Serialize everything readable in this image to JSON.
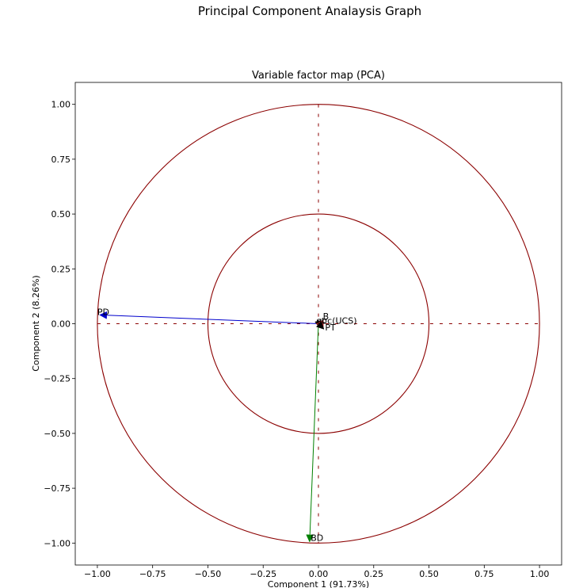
{
  "suptitle": "Principal Component Analaysis Graph",
  "chart_data": {
    "type": "scatter",
    "title": "Variable factor map (PCA)",
    "xlabel": "Component 1 (91.73%)",
    "ylabel": "Component 2 (8.26%)",
    "xlim": [
      -1.1,
      1.1
    ],
    "ylim": [
      -1.1,
      1.1
    ],
    "xticks": [
      -1.0,
      -0.75,
      -0.5,
      -0.25,
      0.0,
      0.25,
      0.5,
      0.75,
      1.0
    ],
    "xtick_labels": [
      "−1.00",
      "−0.75",
      "−0.50",
      "−0.25",
      "0.00",
      "0.25",
      "0.50",
      "0.75",
      "1.00"
    ],
    "yticks": [
      1.0,
      0.75,
      0.5,
      0.25,
      0.0,
      -0.25,
      -0.5,
      -0.75,
      -1.0
    ],
    "ytick_labels": [
      "1.00",
      "0.75",
      "0.50",
      "0.25",
      "0.00",
      "−0.25",
      "−0.50",
      "−0.75",
      "−1.00"
    ],
    "circles": [
      {
        "radius": 1.0,
        "color": "#8b0000"
      },
      {
        "radius": 0.5,
        "color": "#8b0000"
      }
    ],
    "reference_line_color": "#8b0000",
    "grid": false,
    "vectors": [
      {
        "label": "PD",
        "x": -0.99,
        "y": 0.04,
        "color": "#0000cc"
      },
      {
        "label": "BD",
        "x": -0.04,
        "y": -0.995,
        "color": "#008000"
      },
      {
        "label": "B",
        "x": 0.02,
        "y": 0.015,
        "color": "#000000"
      },
      {
        "label": "σc(UCS)",
        "x": 0.03,
        "y": 0.005,
        "color": "#000000"
      },
      {
        "label": "σt",
        "x": -0.01,
        "y": 0.0,
        "color": "#b22222"
      },
      {
        "label": "PT",
        "x": 0.025,
        "y": -0.025,
        "color": "#000000"
      }
    ],
    "labels": [
      {
        "text": "PD",
        "x": -1.0,
        "y": 0.04
      },
      {
        "text": "BD",
        "x": -0.035,
        "y": -0.99
      },
      {
        "text": "B",
        "x": 0.02,
        "y": 0.02
      },
      {
        "text": "σc(UCS)",
        "x": 0.015,
        "y": 0.0
      },
      {
        "text": "σt",
        "x": -0.01,
        "y": 0.0
      },
      {
        "text": "PT",
        "x": 0.03,
        "y": -0.03
      }
    ]
  }
}
